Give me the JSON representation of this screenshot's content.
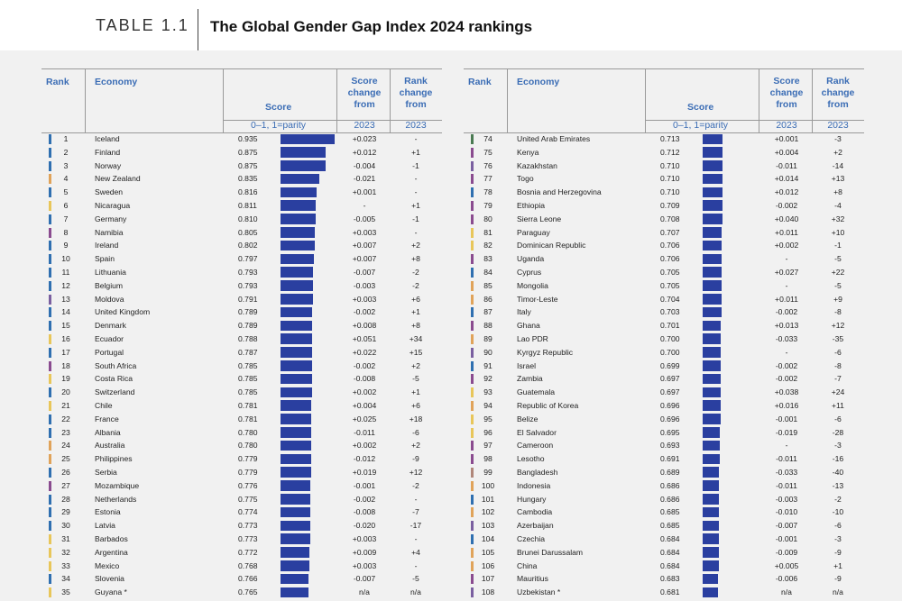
{
  "header": {
    "table_label": "TABLE 1.1",
    "title": "The Global Gender Gap Index 2024 rankings"
  },
  "columns": {
    "rank": "Rank",
    "economy": "Economy",
    "score": "Score",
    "score_range": "0–1, 1=parity",
    "score_change_line1": "Score",
    "score_change_line2": "change",
    "score_change_line3": "from",
    "rank_change_line1": "Rank",
    "rank_change_line2": "change",
    "rank_change_line3": "from",
    "year": "2023"
  },
  "colors": {
    "bar": "#2a3fa0",
    "header_text": "#3b6db5",
    "region_europe": "#2f6fb0",
    "region_latam": "#e8c65a",
    "region_ssa": "#8a4b8f",
    "region_eap": "#e0a35a",
    "region_mena": "#4a7a52",
    "region_eca": "#7a5fa0",
    "region_sa": "#b0877a",
    "region_na": "#4a7fb5"
  },
  "left_rows": [
    {
      "rank": "1",
      "economy": "Iceland",
      "score": "0.935",
      "score_value": 0.935,
      "score_change": "+0.023",
      "rank_change": "-",
      "region": "#2f6fb0"
    },
    {
      "rank": "2",
      "economy": "Finland",
      "score": "0.875",
      "score_value": 0.875,
      "score_change": "+0.012",
      "rank_change": "+1",
      "region": "#2f6fb0"
    },
    {
      "rank": "3",
      "economy": "Norway",
      "score": "0.875",
      "score_value": 0.875,
      "score_change": "-0.004",
      "rank_change": "-1",
      "region": "#2f6fb0"
    },
    {
      "rank": "4",
      "economy": "New Zealand",
      "score": "0.835",
      "score_value": 0.835,
      "score_change": "-0.021",
      "rank_change": "-",
      "region": "#e0a35a"
    },
    {
      "rank": "5",
      "economy": "Sweden",
      "score": "0.816",
      "score_value": 0.816,
      "score_change": "+0.001",
      "rank_change": "-",
      "region": "#2f6fb0"
    },
    {
      "rank": "6",
      "economy": "Nicaragua",
      "score": "0.811",
      "score_value": 0.811,
      "score_change": "-",
      "rank_change": "+1",
      "region": "#e8c65a"
    },
    {
      "rank": "7",
      "economy": "Germany",
      "score": "0.810",
      "score_value": 0.81,
      "score_change": "-0.005",
      "rank_change": "-1",
      "region": "#2f6fb0"
    },
    {
      "rank": "8",
      "economy": "Namibia",
      "score": "0.805",
      "score_value": 0.805,
      "score_change": "+0.003",
      "rank_change": "-",
      "region": "#8a4b8f"
    },
    {
      "rank": "9",
      "economy": "Ireland",
      "score": "0.802",
      "score_value": 0.802,
      "score_change": "+0.007",
      "rank_change": "+2",
      "region": "#2f6fb0"
    },
    {
      "rank": "10",
      "economy": "Spain",
      "score": "0.797",
      "score_value": 0.797,
      "score_change": "+0.007",
      "rank_change": "+8",
      "region": "#2f6fb0"
    },
    {
      "rank": "11",
      "economy": "Lithuania",
      "score": "0.793",
      "score_value": 0.793,
      "score_change": "-0.007",
      "rank_change": "-2",
      "region": "#2f6fb0"
    },
    {
      "rank": "12",
      "economy": "Belgium",
      "score": "0.793",
      "score_value": 0.793,
      "score_change": "-0.003",
      "rank_change": "-2",
      "region": "#2f6fb0"
    },
    {
      "rank": "13",
      "economy": "Moldova",
      "score": "0.791",
      "score_value": 0.791,
      "score_change": "+0.003",
      "rank_change": "+6",
      "region": "#7a5fa0"
    },
    {
      "rank": "14",
      "economy": "United Kingdom",
      "score": "0.789",
      "score_value": 0.789,
      "score_change": "-0.002",
      "rank_change": "+1",
      "region": "#2f6fb0"
    },
    {
      "rank": "15",
      "economy": "Denmark",
      "score": "0.789",
      "score_value": 0.789,
      "score_change": "+0.008",
      "rank_change": "+8",
      "region": "#2f6fb0"
    },
    {
      "rank": "16",
      "economy": "Ecuador",
      "score": "0.788",
      "score_value": 0.788,
      "score_change": "+0.051",
      "rank_change": "+34",
      "region": "#e8c65a"
    },
    {
      "rank": "17",
      "economy": "Portugal",
      "score": "0.787",
      "score_value": 0.787,
      "score_change": "+0.022",
      "rank_change": "+15",
      "region": "#2f6fb0"
    },
    {
      "rank": "18",
      "economy": "South Africa",
      "score": "0.785",
      "score_value": 0.785,
      "score_change": "-0.002",
      "rank_change": "+2",
      "region": "#8a4b8f"
    },
    {
      "rank": "19",
      "economy": "Costa Rica",
      "score": "0.785",
      "score_value": 0.785,
      "score_change": "-0.008",
      "rank_change": "-5",
      "region": "#e8c65a"
    },
    {
      "rank": "20",
      "economy": "Switzerland",
      "score": "0.785",
      "score_value": 0.785,
      "score_change": "+0.002",
      "rank_change": "+1",
      "region": "#2f6fb0"
    },
    {
      "rank": "21",
      "economy": "Chile",
      "score": "0.781",
      "score_value": 0.781,
      "score_change": "+0.004",
      "rank_change": "+6",
      "region": "#e8c65a"
    },
    {
      "rank": "22",
      "economy": "France",
      "score": "0.781",
      "score_value": 0.781,
      "score_change": "+0.025",
      "rank_change": "+18",
      "region": "#2f6fb0"
    },
    {
      "rank": "23",
      "economy": "Albania",
      "score": "0.780",
      "score_value": 0.78,
      "score_change": "-0.011",
      "rank_change": "-6",
      "region": "#2f6fb0"
    },
    {
      "rank": "24",
      "economy": "Australia",
      "score": "0.780",
      "score_value": 0.78,
      "score_change": "+0.002",
      "rank_change": "+2",
      "region": "#e0a35a"
    },
    {
      "rank": "25",
      "economy": "Philippines",
      "score": "0.779",
      "score_value": 0.779,
      "score_change": "-0.012",
      "rank_change": "-9",
      "region": "#e0a35a"
    },
    {
      "rank": "26",
      "economy": "Serbia",
      "score": "0.779",
      "score_value": 0.779,
      "score_change": "+0.019",
      "rank_change": "+12",
      "region": "#2f6fb0"
    },
    {
      "rank": "27",
      "economy": "Mozambique",
      "score": "0.776",
      "score_value": 0.776,
      "score_change": "-0.001",
      "rank_change": "-2",
      "region": "#8a4b8f"
    },
    {
      "rank": "28",
      "economy": "Netherlands",
      "score": "0.775",
      "score_value": 0.775,
      "score_change": "-0.002",
      "rank_change": "-",
      "region": "#2f6fb0"
    },
    {
      "rank": "29",
      "economy": "Estonia",
      "score": "0.774",
      "score_value": 0.774,
      "score_change": "-0.008",
      "rank_change": "-7",
      "region": "#2f6fb0"
    },
    {
      "rank": "30",
      "economy": "Latvia",
      "score": "0.773",
      "score_value": 0.773,
      "score_change": "-0.020",
      "rank_change": "-17",
      "region": "#2f6fb0"
    },
    {
      "rank": "31",
      "economy": "Barbados",
      "score": "0.773",
      "score_value": 0.773,
      "score_change": "+0.003",
      "rank_change": "-",
      "region": "#e8c65a"
    },
    {
      "rank": "32",
      "economy": "Argentina",
      "score": "0.772",
      "score_value": 0.772,
      "score_change": "+0.009",
      "rank_change": "+4",
      "region": "#e8c65a"
    },
    {
      "rank": "33",
      "economy": "Mexico",
      "score": "0.768",
      "score_value": 0.768,
      "score_change": "+0.003",
      "rank_change": "-",
      "region": "#e8c65a"
    },
    {
      "rank": "34",
      "economy": "Slovenia",
      "score": "0.766",
      "score_value": 0.766,
      "score_change": "-0.007",
      "rank_change": "-5",
      "region": "#2f6fb0"
    },
    {
      "rank": "35",
      "economy": "Guyana *",
      "score": "0.765",
      "score_value": 0.765,
      "score_change": "n/a",
      "rank_change": "n/a",
      "region": "#e8c65a"
    }
  ],
  "right_rows": [
    {
      "rank": "74",
      "economy": "United Arab Emirates",
      "score": "0.713",
      "score_value": 0.713,
      "score_change": "+0.001",
      "rank_change": "-3",
      "region": "#4a7a52"
    },
    {
      "rank": "75",
      "economy": "Kenya",
      "score": "0.712",
      "score_value": 0.712,
      "score_change": "+0.004",
      "rank_change": "+2",
      "region": "#8a4b8f"
    },
    {
      "rank": "76",
      "economy": "Kazakhstan",
      "score": "0.710",
      "score_value": 0.71,
      "score_change": "-0.011",
      "rank_change": "-14",
      "region": "#7a5fa0"
    },
    {
      "rank": "77",
      "economy": "Togo",
      "score": "0.710",
      "score_value": 0.71,
      "score_change": "+0.014",
      "rank_change": "+13",
      "region": "#8a4b8f"
    },
    {
      "rank": "78",
      "economy": "Bosnia and Herzegovina",
      "score": "0.710",
      "score_value": 0.71,
      "score_change": "+0.012",
      "rank_change": "+8",
      "region": "#2f6fb0"
    },
    {
      "rank": "79",
      "economy": "Ethiopia",
      "score": "0.709",
      "score_value": 0.709,
      "score_change": "-0.002",
      "rank_change": "-4",
      "region": "#8a4b8f"
    },
    {
      "rank": "80",
      "economy": "Sierra Leone",
      "score": "0.708",
      "score_value": 0.708,
      "score_change": "+0.040",
      "rank_change": "+32",
      "region": "#8a4b8f"
    },
    {
      "rank": "81",
      "economy": "Paraguay",
      "score": "0.707",
      "score_value": 0.707,
      "score_change": "+0.011",
      "rank_change": "+10",
      "region": "#e8c65a"
    },
    {
      "rank": "82",
      "economy": "Dominican Republic",
      "score": "0.706",
      "score_value": 0.706,
      "score_change": "+0.002",
      "rank_change": "-1",
      "region": "#e8c65a"
    },
    {
      "rank": "83",
      "economy": "Uganda",
      "score": "0.706",
      "score_value": 0.706,
      "score_change": "-",
      "rank_change": "-5",
      "region": "#8a4b8f"
    },
    {
      "rank": "84",
      "economy": "Cyprus",
      "score": "0.705",
      "score_value": 0.705,
      "score_change": "+0.027",
      "rank_change": "+22",
      "region": "#2f6fb0"
    },
    {
      "rank": "85",
      "economy": "Mongolia",
      "score": "0.705",
      "score_value": 0.705,
      "score_change": "-",
      "rank_change": "-5",
      "region": "#e0a35a"
    },
    {
      "rank": "86",
      "economy": "Timor-Leste",
      "score": "0.704",
      "score_value": 0.704,
      "score_change": "+0.011",
      "rank_change": "+9",
      "region": "#e0a35a"
    },
    {
      "rank": "87",
      "economy": "Italy",
      "score": "0.703",
      "score_value": 0.703,
      "score_change": "-0.002",
      "rank_change": "-8",
      "region": "#2f6fb0"
    },
    {
      "rank": "88",
      "economy": "Ghana",
      "score": "0.701",
      "score_value": 0.701,
      "score_change": "+0.013",
      "rank_change": "+12",
      "region": "#8a4b8f"
    },
    {
      "rank": "89",
      "economy": "Lao PDR",
      "score": "0.700",
      "score_value": 0.7,
      "score_change": "-0.033",
      "rank_change": "-35",
      "region": "#e0a35a"
    },
    {
      "rank": "90",
      "economy": "Kyrgyz Republic",
      "score": "0.700",
      "score_value": 0.7,
      "score_change": "-",
      "rank_change": "-6",
      "region": "#7a5fa0"
    },
    {
      "rank": "91",
      "economy": "Israel",
      "score": "0.699",
      "score_value": 0.699,
      "score_change": "-0.002",
      "rank_change": "-8",
      "region": "#2f6fb0"
    },
    {
      "rank": "92",
      "economy": "Zambia",
      "score": "0.697",
      "score_value": 0.697,
      "score_change": "-0.002",
      "rank_change": "-7",
      "region": "#8a4b8f"
    },
    {
      "rank": "93",
      "economy": "Guatemala",
      "score": "0.697",
      "score_value": 0.697,
      "score_change": "+0.038",
      "rank_change": "+24",
      "region": "#e8c65a"
    },
    {
      "rank": "94",
      "economy": "Republic of Korea",
      "score": "0.696",
      "score_value": 0.696,
      "score_change": "+0.016",
      "rank_change": "+11",
      "region": "#e0a35a"
    },
    {
      "rank": "95",
      "economy": "Belize",
      "score": "0.696",
      "score_value": 0.696,
      "score_change": "-0.001",
      "rank_change": "-6",
      "region": "#e8c65a"
    },
    {
      "rank": "96",
      "economy": "El Salvador",
      "score": "0.695",
      "score_value": 0.695,
      "score_change": "-0.019",
      "rank_change": "-28",
      "region": "#e8c65a"
    },
    {
      "rank": "97",
      "economy": "Cameroon",
      "score": "0.693",
      "score_value": 0.693,
      "score_change": "-",
      "rank_change": "-3",
      "region": "#8a4b8f"
    },
    {
      "rank": "98",
      "economy": "Lesotho",
      "score": "0.691",
      "score_value": 0.691,
      "score_change": "-0.011",
      "rank_change": "-16",
      "region": "#8a4b8f"
    },
    {
      "rank": "99",
      "economy": "Bangladesh",
      "score": "0.689",
      "score_value": 0.689,
      "score_change": "-0.033",
      "rank_change": "-40",
      "region": "#b0877a"
    },
    {
      "rank": "100",
      "economy": "Indonesia",
      "score": "0.686",
      "score_value": 0.686,
      "score_change": "-0.011",
      "rank_change": "-13",
      "region": "#e0a35a"
    },
    {
      "rank": "101",
      "economy": "Hungary",
      "score": "0.686",
      "score_value": 0.686,
      "score_change": "-0.003",
      "rank_change": "-2",
      "region": "#2f6fb0"
    },
    {
      "rank": "102",
      "economy": "Cambodia",
      "score": "0.685",
      "score_value": 0.685,
      "score_change": "-0.010",
      "rank_change": "-10",
      "region": "#e0a35a"
    },
    {
      "rank": "103",
      "economy": "Azerbaijan",
      "score": "0.685",
      "score_value": 0.685,
      "score_change": "-0.007",
      "rank_change": "-6",
      "region": "#7a5fa0"
    },
    {
      "rank": "104",
      "economy": "Czechia",
      "score": "0.684",
      "score_value": 0.684,
      "score_change": "-0.001",
      "rank_change": "-3",
      "region": "#2f6fb0"
    },
    {
      "rank": "105",
      "economy": "Brunei Darussalam",
      "score": "0.684",
      "score_value": 0.684,
      "score_change": "-0.009",
      "rank_change": "-9",
      "region": "#e0a35a"
    },
    {
      "rank": "106",
      "economy": "China",
      "score": "0.684",
      "score_value": 0.684,
      "score_change": "+0.005",
      "rank_change": "+1",
      "region": "#e0a35a"
    },
    {
      "rank": "107",
      "economy": "Mauritius",
      "score": "0.683",
      "score_value": 0.683,
      "score_change": "-0.006",
      "rank_change": "-9",
      "region": "#8a4b8f"
    },
    {
      "rank": "108",
      "economy": "Uzbekistan *",
      "score": "0.681",
      "score_value": 0.681,
      "score_change": "n/a",
      "rank_change": "n/a",
      "region": "#7a5fa0"
    }
  ]
}
